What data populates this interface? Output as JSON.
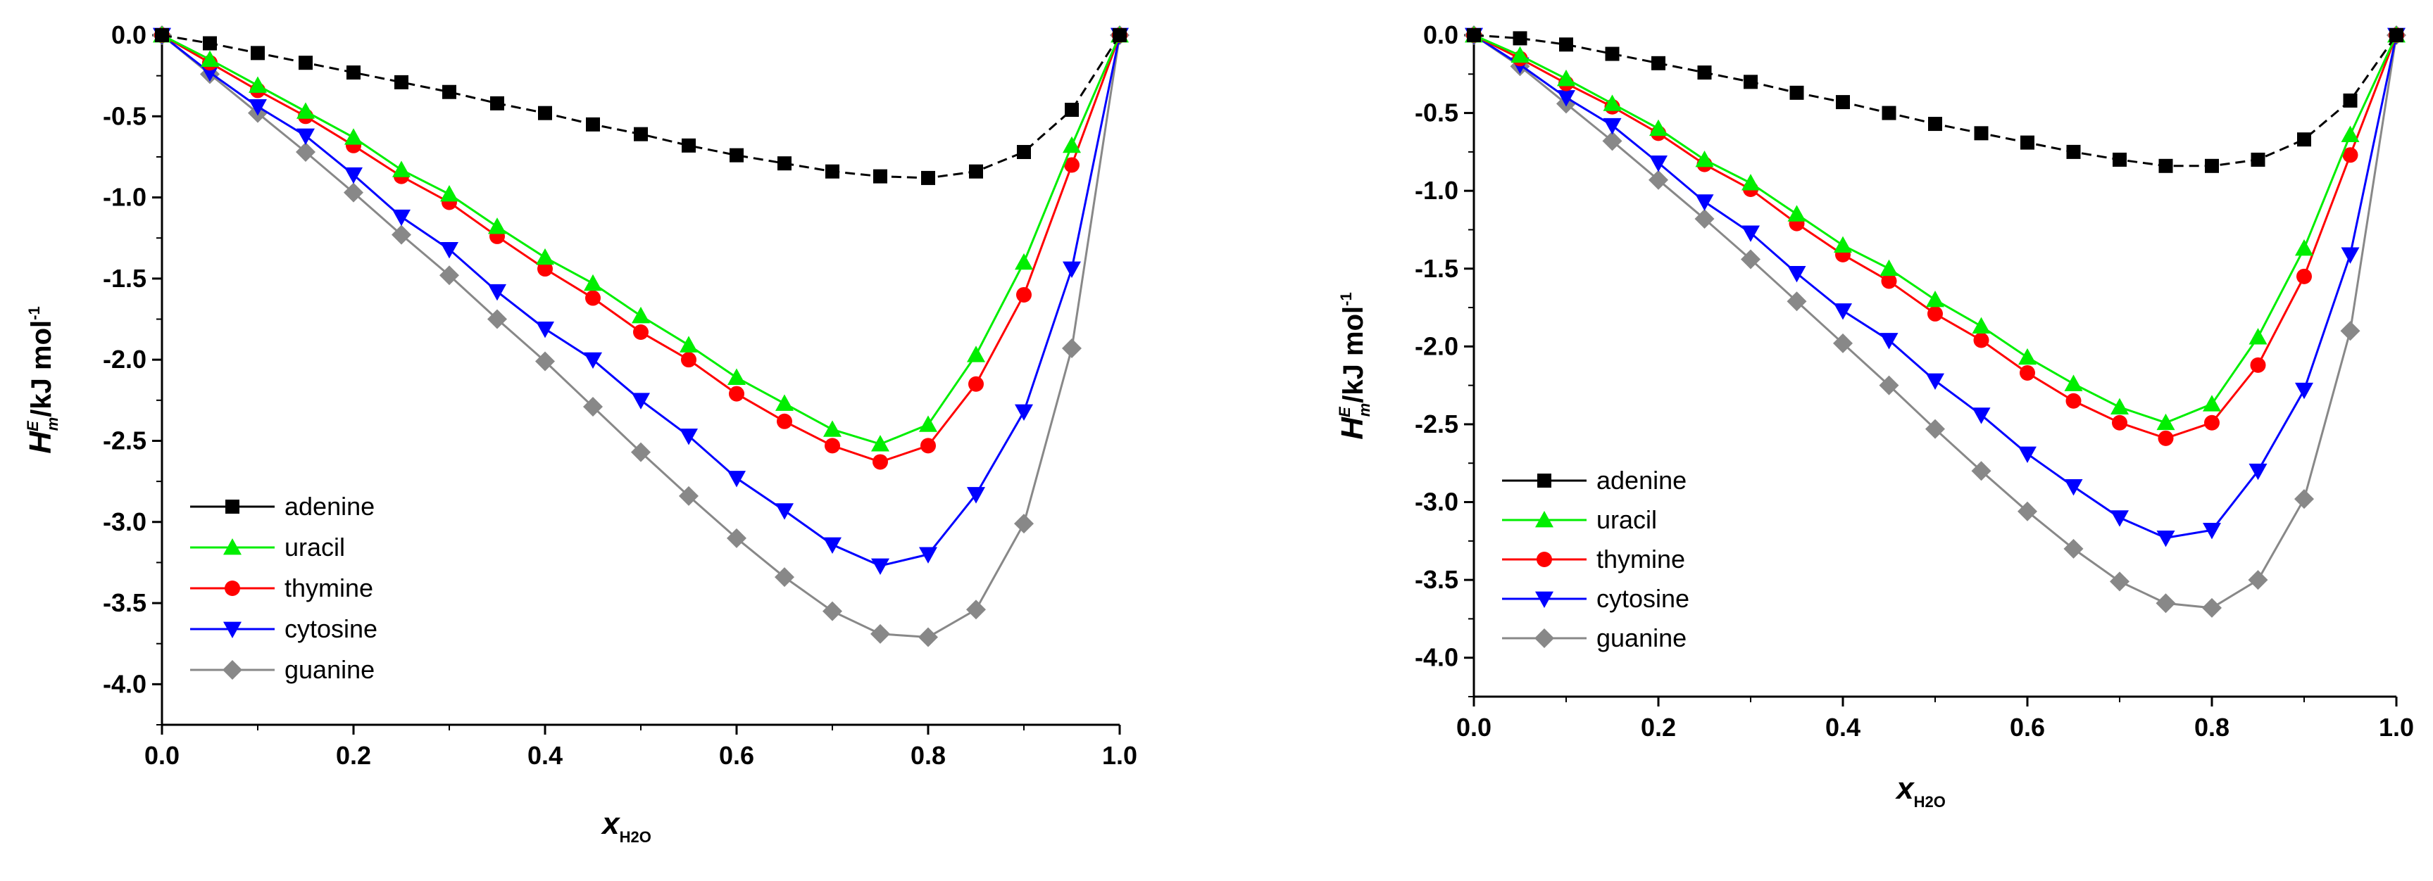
{
  "colors": {
    "adenine": "#000000",
    "uracil": "#00ee00",
    "thymine": "#ff0000",
    "cytosine": "#0000ff",
    "guanine": "#888888"
  },
  "chart_data": [
    {
      "type": "line",
      "title": "",
      "xlabel": "x",
      "xlabel_sub": "H2O",
      "ylabel": "H",
      "ylabel_sup": "E",
      "ylabel_sub": "m",
      "ylabel_unit": "/kJ mol",
      "ylabel_unit_sup": "-1",
      "xlim": [
        0.0,
        1.0
      ],
      "ylim": [
        -4.25,
        0.0
      ],
      "xticks": [
        "0.0",
        "0.2",
        "0.4",
        "0.6",
        "0.8",
        "1.0"
      ],
      "yticks": [
        "0.0",
        "-0.5",
        "-1.0",
        "-1.5",
        "-2.0",
        "-2.5",
        "-3.0",
        "-3.5",
        "-4.0"
      ],
      "legend_position": "bottom-left",
      "x": [
        0,
        0.05,
        0.1,
        0.15,
        0.2,
        0.25,
        0.3,
        0.35,
        0.4,
        0.45,
        0.5,
        0.55,
        0.6,
        0.65,
        0.7,
        0.75,
        0.8,
        0.85,
        0.9,
        0.95,
        1.0
      ],
      "series": [
        {
          "name": "adenine",
          "marker": "square",
          "values": [
            0,
            -0.05,
            -0.11,
            -0.17,
            -0.23,
            -0.29,
            -0.35,
            -0.42,
            -0.48,
            -0.55,
            -0.61,
            -0.68,
            -0.74,
            -0.79,
            -0.84,
            -0.87,
            -0.88,
            -0.84,
            -0.72,
            -0.46,
            0
          ]
        },
        {
          "name": "uracil",
          "marker": "triangle-up",
          "values": [
            0,
            -0.15,
            -0.31,
            -0.47,
            -0.63,
            -0.83,
            -0.98,
            -1.18,
            -1.37,
            -1.53,
            -1.73,
            -1.91,
            -2.11,
            -2.27,
            -2.43,
            -2.52,
            -2.4,
            -1.97,
            -1.4,
            -0.68,
            0
          ]
        },
        {
          "name": "thymine",
          "marker": "circle",
          "values": [
            0,
            -0.17,
            -0.34,
            -0.5,
            -0.68,
            -0.87,
            -1.03,
            -1.24,
            -1.44,
            -1.62,
            -1.83,
            -2.0,
            -2.21,
            -2.38,
            -2.53,
            -2.63,
            -2.53,
            -2.15,
            -1.6,
            -0.8,
            0
          ]
        },
        {
          "name": "cytosine",
          "marker": "triangle-down",
          "values": [
            0,
            -0.23,
            -0.44,
            -0.62,
            -0.86,
            -1.12,
            -1.32,
            -1.58,
            -1.81,
            -2.0,
            -2.25,
            -2.47,
            -2.73,
            -2.93,
            -3.14,
            -3.27,
            -3.2,
            -2.83,
            -2.32,
            -1.44,
            0
          ]
        },
        {
          "name": "guanine",
          "marker": "diamond",
          "values": [
            0,
            -0.24,
            -0.48,
            -0.72,
            -0.97,
            -1.23,
            -1.48,
            -1.75,
            -2.01,
            -2.29,
            -2.57,
            -2.84,
            -3.1,
            -3.34,
            -3.55,
            -3.69,
            -3.71,
            -3.54,
            -3.01,
            -1.93,
            0
          ]
        }
      ]
    },
    {
      "type": "line",
      "title": "",
      "xlabel": "x",
      "xlabel_sub": "H2O",
      "ylabel": "H",
      "ylabel_sup": "E",
      "ylabel_sub": "m",
      "ylabel_unit": "/kJ mol",
      "ylabel_unit_sup": "-1",
      "xlim": [
        0.0,
        1.0
      ],
      "ylim": [
        -4.25,
        0.0
      ],
      "xticks": [
        "0.0",
        "0.2",
        "0.4",
        "0.6",
        "0.8",
        "1.0"
      ],
      "yticks": [
        "0.0",
        "-0.5",
        "-1.0",
        "-1.5",
        "-2.0",
        "-2.5",
        "-3.0",
        "-3.5",
        "-4.0"
      ],
      "legend_position": "bottom-left",
      "x": [
        0,
        0.05,
        0.1,
        0.15,
        0.2,
        0.25,
        0.3,
        0.35,
        0.4,
        0.45,
        0.5,
        0.55,
        0.6,
        0.65,
        0.7,
        0.75,
        0.8,
        0.85,
        0.9,
        0.95,
        1.0
      ],
      "series": [
        {
          "name": "adenine",
          "marker": "square",
          "values": [
            0,
            -0.02,
            -0.06,
            -0.12,
            -0.18,
            -0.24,
            -0.3,
            -0.37,
            -0.43,
            -0.5,
            -0.57,
            -0.63,
            -0.69,
            -0.75,
            -0.8,
            -0.84,
            -0.84,
            -0.8,
            -0.67,
            -0.42,
            0
          ]
        },
        {
          "name": "uracil",
          "marker": "triangle-up",
          "values": [
            0,
            -0.13,
            -0.28,
            -0.44,
            -0.6,
            -0.8,
            -0.95,
            -1.15,
            -1.35,
            -1.5,
            -1.7,
            -1.87,
            -2.07,
            -2.24,
            -2.39,
            -2.49,
            -2.37,
            -1.94,
            -1.37,
            -0.64,
            0
          ]
        },
        {
          "name": "thymine",
          "marker": "circle",
          "values": [
            0,
            -0.15,
            -0.31,
            -0.46,
            -0.63,
            -0.83,
            -0.99,
            -1.21,
            -1.41,
            -1.58,
            -1.79,
            -1.96,
            -2.17,
            -2.35,
            -2.49,
            -2.59,
            -2.49,
            -2.12,
            -1.55,
            -0.77,
            0
          ]
        },
        {
          "name": "cytosine",
          "marker": "triangle-down",
          "values": [
            0,
            -0.19,
            -0.4,
            -0.58,
            -0.82,
            -1.07,
            -1.27,
            -1.53,
            -1.77,
            -1.96,
            -2.22,
            -2.44,
            -2.69,
            -2.9,
            -3.1,
            -3.23,
            -3.18,
            -2.8,
            -2.28,
            -1.41,
            0
          ]
        },
        {
          "name": "guanine",
          "marker": "diamond",
          "values": [
            0,
            -0.2,
            -0.44,
            -0.68,
            -0.93,
            -1.18,
            -1.44,
            -1.71,
            -1.98,
            -2.25,
            -2.53,
            -2.8,
            -3.06,
            -3.3,
            -3.51,
            -3.65,
            -3.68,
            -3.5,
            -2.98,
            -1.9,
            0
          ]
        }
      ]
    }
  ]
}
